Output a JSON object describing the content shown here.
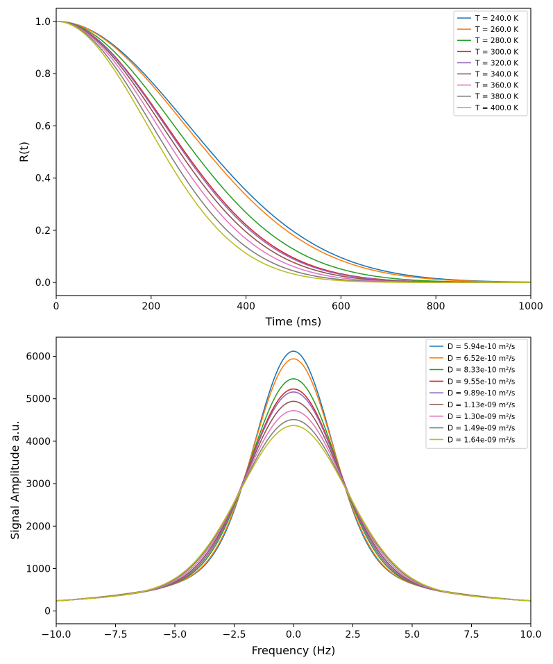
{
  "chart_data": [
    {
      "type": "line",
      "title": "",
      "xlabel": "Time (ms)",
      "ylabel": "R(t)",
      "xlim": [
        0,
        1000
      ],
      "ylim": [
        -0.05,
        1.05
      ],
      "xticks": [
        0,
        200,
        400,
        600,
        800,
        1000
      ],
      "xtick_labels": [
        "0",
        "200",
        "400",
        "600",
        "800",
        "1000"
      ],
      "yticks": [
        0.0,
        0.2,
        0.4,
        0.6,
        0.8,
        1.0
      ],
      "ytick_labels": [
        "0.0",
        "0.2",
        "0.4",
        "0.6",
        "0.8",
        "1.0"
      ],
      "grid": false,
      "legend_position": "top-right",
      "series": [
        {
          "name": "T = 240.0 K",
          "color": "#1f77b4",
          "half_time_ms": 326
        },
        {
          "name": "T = 260.0 K",
          "color": "#ff7f0e",
          "half_time_ms": 318
        },
        {
          "name": "T = 280.0 K",
          "color": "#2ca02c",
          "half_time_ms": 290
        },
        {
          "name": "T = 300.0 K",
          "color": "#d62728",
          "half_time_ms": 271
        },
        {
          "name": "T = 320.0 K",
          "color": "#9467bd",
          "half_time_ms": 268
        },
        {
          "name": "T = 340.0 K",
          "color": "#8c564b",
          "half_time_ms": 260
        },
        {
          "name": "T = 360.0 K",
          "color": "#e377c2",
          "half_time_ms": 249
        },
        {
          "name": "T = 380.0 K",
          "color": "#7f7f7f",
          "half_time_ms": 236
        },
        {
          "name": "T = 400.0 K",
          "color": "#bcbd22",
          "half_time_ms": 225
        }
      ],
      "curve_model": "R(t) = exp(-ln2 * (t / half_time_ms)^2)"
    },
    {
      "type": "line",
      "title": "",
      "xlabel": "Frequency (Hz)",
      "ylabel": "Signal Amplitude a.u.",
      "xlim": [
        -10,
        10
      ],
      "ylim": [
        -300,
        6450
      ],
      "xticks": [
        -10,
        -7.5,
        -5,
        -2.5,
        0,
        2.5,
        5,
        7.5,
        10
      ],
      "xtick_labels": [
        "−10.0",
        "−7.5",
        "−5.0",
        "−2.5",
        "0.0",
        "2.5",
        "5.0",
        "7.5",
        "10.0"
      ],
      "yticks": [
        0,
        1000,
        2000,
        3000,
        4000,
        5000,
        6000
      ],
      "ytick_labels": [
        "0",
        "1000",
        "2000",
        "3000",
        "4000",
        "5000",
        "6000"
      ],
      "grid": false,
      "legend_position": "top-right",
      "tail_amplitude_at_10hz": 320,
      "series": [
        {
          "name": "D = 5.94e-10 m²/s",
          "color": "#1f77b4",
          "peak": 6120,
          "width_hz": 1.85
        },
        {
          "name": "D = 6.52e-10 m²/s",
          "color": "#ff7f0e",
          "peak": 5940,
          "width_hz": 1.91
        },
        {
          "name": "D = 8.33e-10 m²/s",
          "color": "#2ca02c",
          "peak": 5470,
          "width_hz": 2.07
        },
        {
          "name": "D = 9.55e-10 m²/s",
          "color": "#d62728",
          "peak": 5230,
          "width_hz": 2.17
        },
        {
          "name": "D = 9.89e-10 m²/s",
          "color": "#9467bd",
          "peak": 5160,
          "width_hz": 2.19
        },
        {
          "name": "D = 1.13e-09 m²/s",
          "color": "#8c564b",
          "peak": 4940,
          "width_hz": 2.29
        },
        {
          "name": "D = 1.30e-09 m²/s",
          "color": "#e377c2",
          "peak": 4720,
          "width_hz": 2.4
        },
        {
          "name": "D = 1.49e-09 m²/s",
          "color": "#7f7f7f",
          "peak": 4510,
          "width_hz": 2.51
        },
        {
          "name": "D = 1.64e-09 m²/s",
          "color": "#bcbd22",
          "peak": 4370,
          "width_hz": 2.59
        }
      ]
    }
  ]
}
